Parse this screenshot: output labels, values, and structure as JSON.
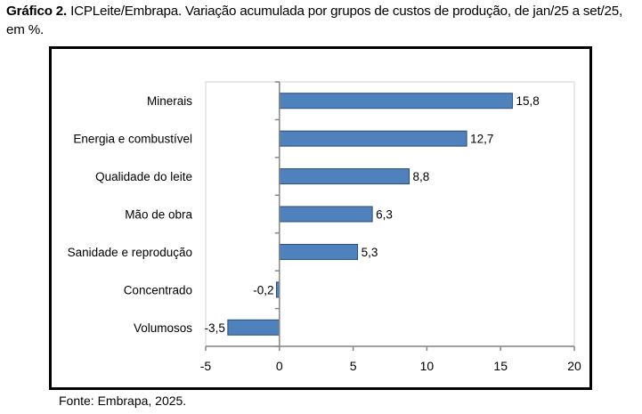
{
  "caption": {
    "bold": "Gráfico 2.",
    "text": " ICPLeite/Embrapa. Variação acumulada por grupos de custos de produção, de jan/25 a set/25, em %."
  },
  "source": "Fonte: Embrapa, 2025.",
  "chart_data": {
    "type": "bar",
    "orientation": "horizontal",
    "title": "ICPLeite/Embrapa. Variação acumulada por grupos de custos de produção, de jan/25 a set/25, em %.",
    "xlabel": "",
    "ylabel": "",
    "categories": [
      "Minerais",
      "Energia e combustível",
      "Qualidade do leite",
      "Mão de obra",
      "Sanidade e reprodução",
      "Concentrado",
      "Volumosos"
    ],
    "values": [
      15.8,
      12.7,
      8.8,
      6.3,
      5.3,
      -0.2,
      -3.5
    ],
    "data_labels": [
      "15,8",
      "12,7",
      "8,8",
      "6,3",
      "5,3",
      "-0,2",
      "-3,5"
    ],
    "xlim": [
      -5,
      20
    ],
    "xticks": [
      -5,
      0,
      5,
      10,
      15,
      20
    ],
    "xtick_labels": [
      "-5",
      "0",
      "5",
      "10",
      "15",
      "20"
    ],
    "grid": false,
    "legend": "none",
    "bar_color": "#4f81bd",
    "bar_edge_color": "#2c4d75"
  }
}
